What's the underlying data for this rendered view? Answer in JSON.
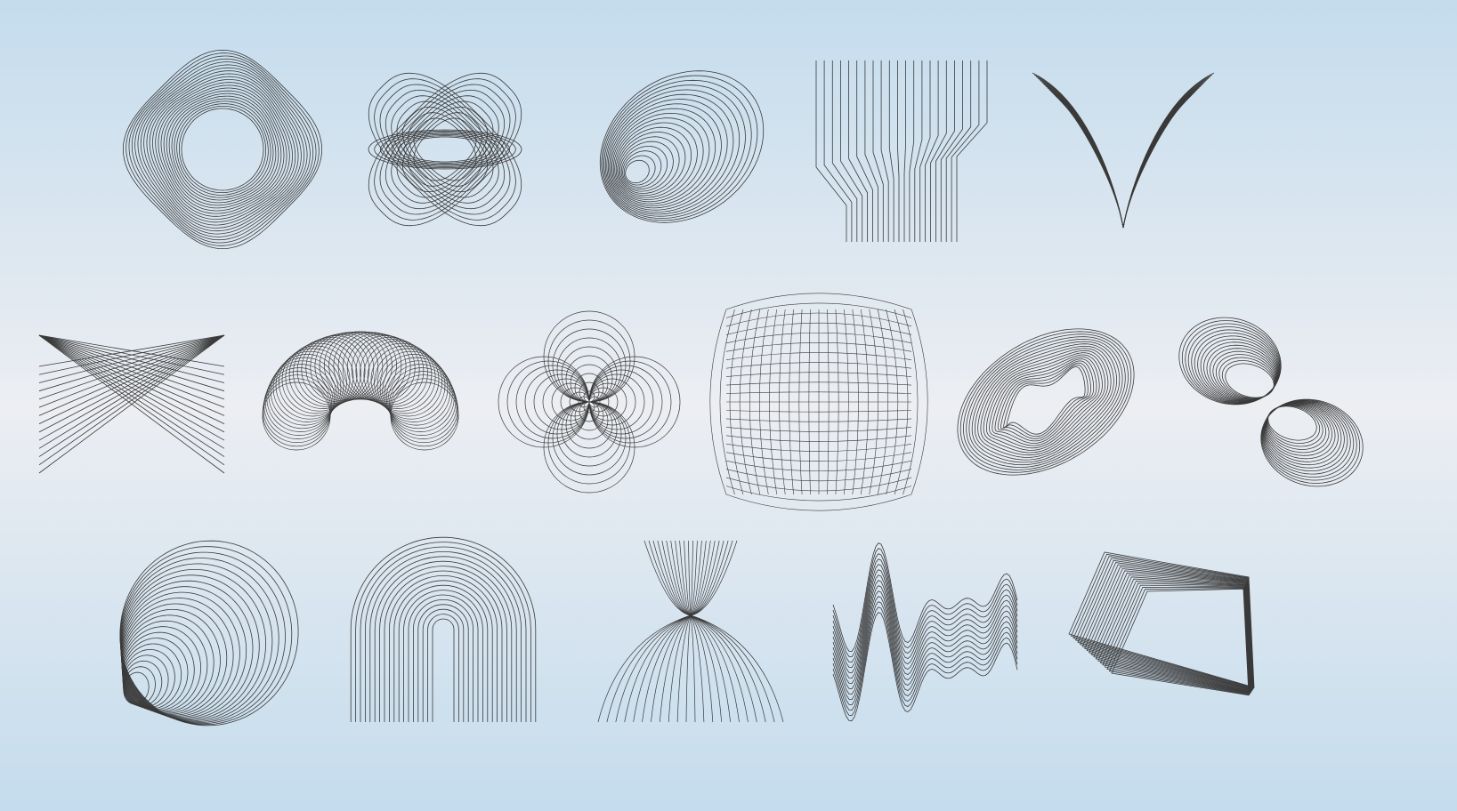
{
  "background": {
    "edge_color": "#c4dced",
    "center_color": "#eceef2"
  },
  "line_color": "#3a3a3a",
  "shapes": [
    {
      "name": "rotated-square-ring-shape",
      "kind": "squircle-ring"
    },
    {
      "name": "crossed-petal-loops-shape",
      "kind": "petal-loops"
    },
    {
      "name": "tilted-ellipse-nest-shape",
      "kind": "ellipse-nest"
    },
    {
      "name": "bent-vertical-lines-shape",
      "kind": "bent-lines"
    },
    {
      "name": "fanned-curves-shape",
      "kind": "fan-curves"
    },
    {
      "name": "crossing-rays-shape",
      "kind": "cross-rays"
    },
    {
      "name": "coiled-arch-shape",
      "kind": "coil-arch"
    },
    {
      "name": "four-petal-circles-shape",
      "kind": "clover"
    },
    {
      "name": "mesh-sphere-shape",
      "kind": "mesh-sphere"
    },
    {
      "name": "tilted-ring-band-shape",
      "kind": "ring-band"
    },
    {
      "name": "figure-eight-loops-shape",
      "kind": "figure-eight"
    },
    {
      "name": "nested-cone-shape",
      "kind": "cone"
    },
    {
      "name": "nested-arches-shape",
      "kind": "arches"
    },
    {
      "name": "hourglass-lines-shape",
      "kind": "hourglass"
    },
    {
      "name": "wave-lines-shape",
      "kind": "waves"
    },
    {
      "name": "stacked-prism-shape",
      "kind": "prism"
    }
  ]
}
